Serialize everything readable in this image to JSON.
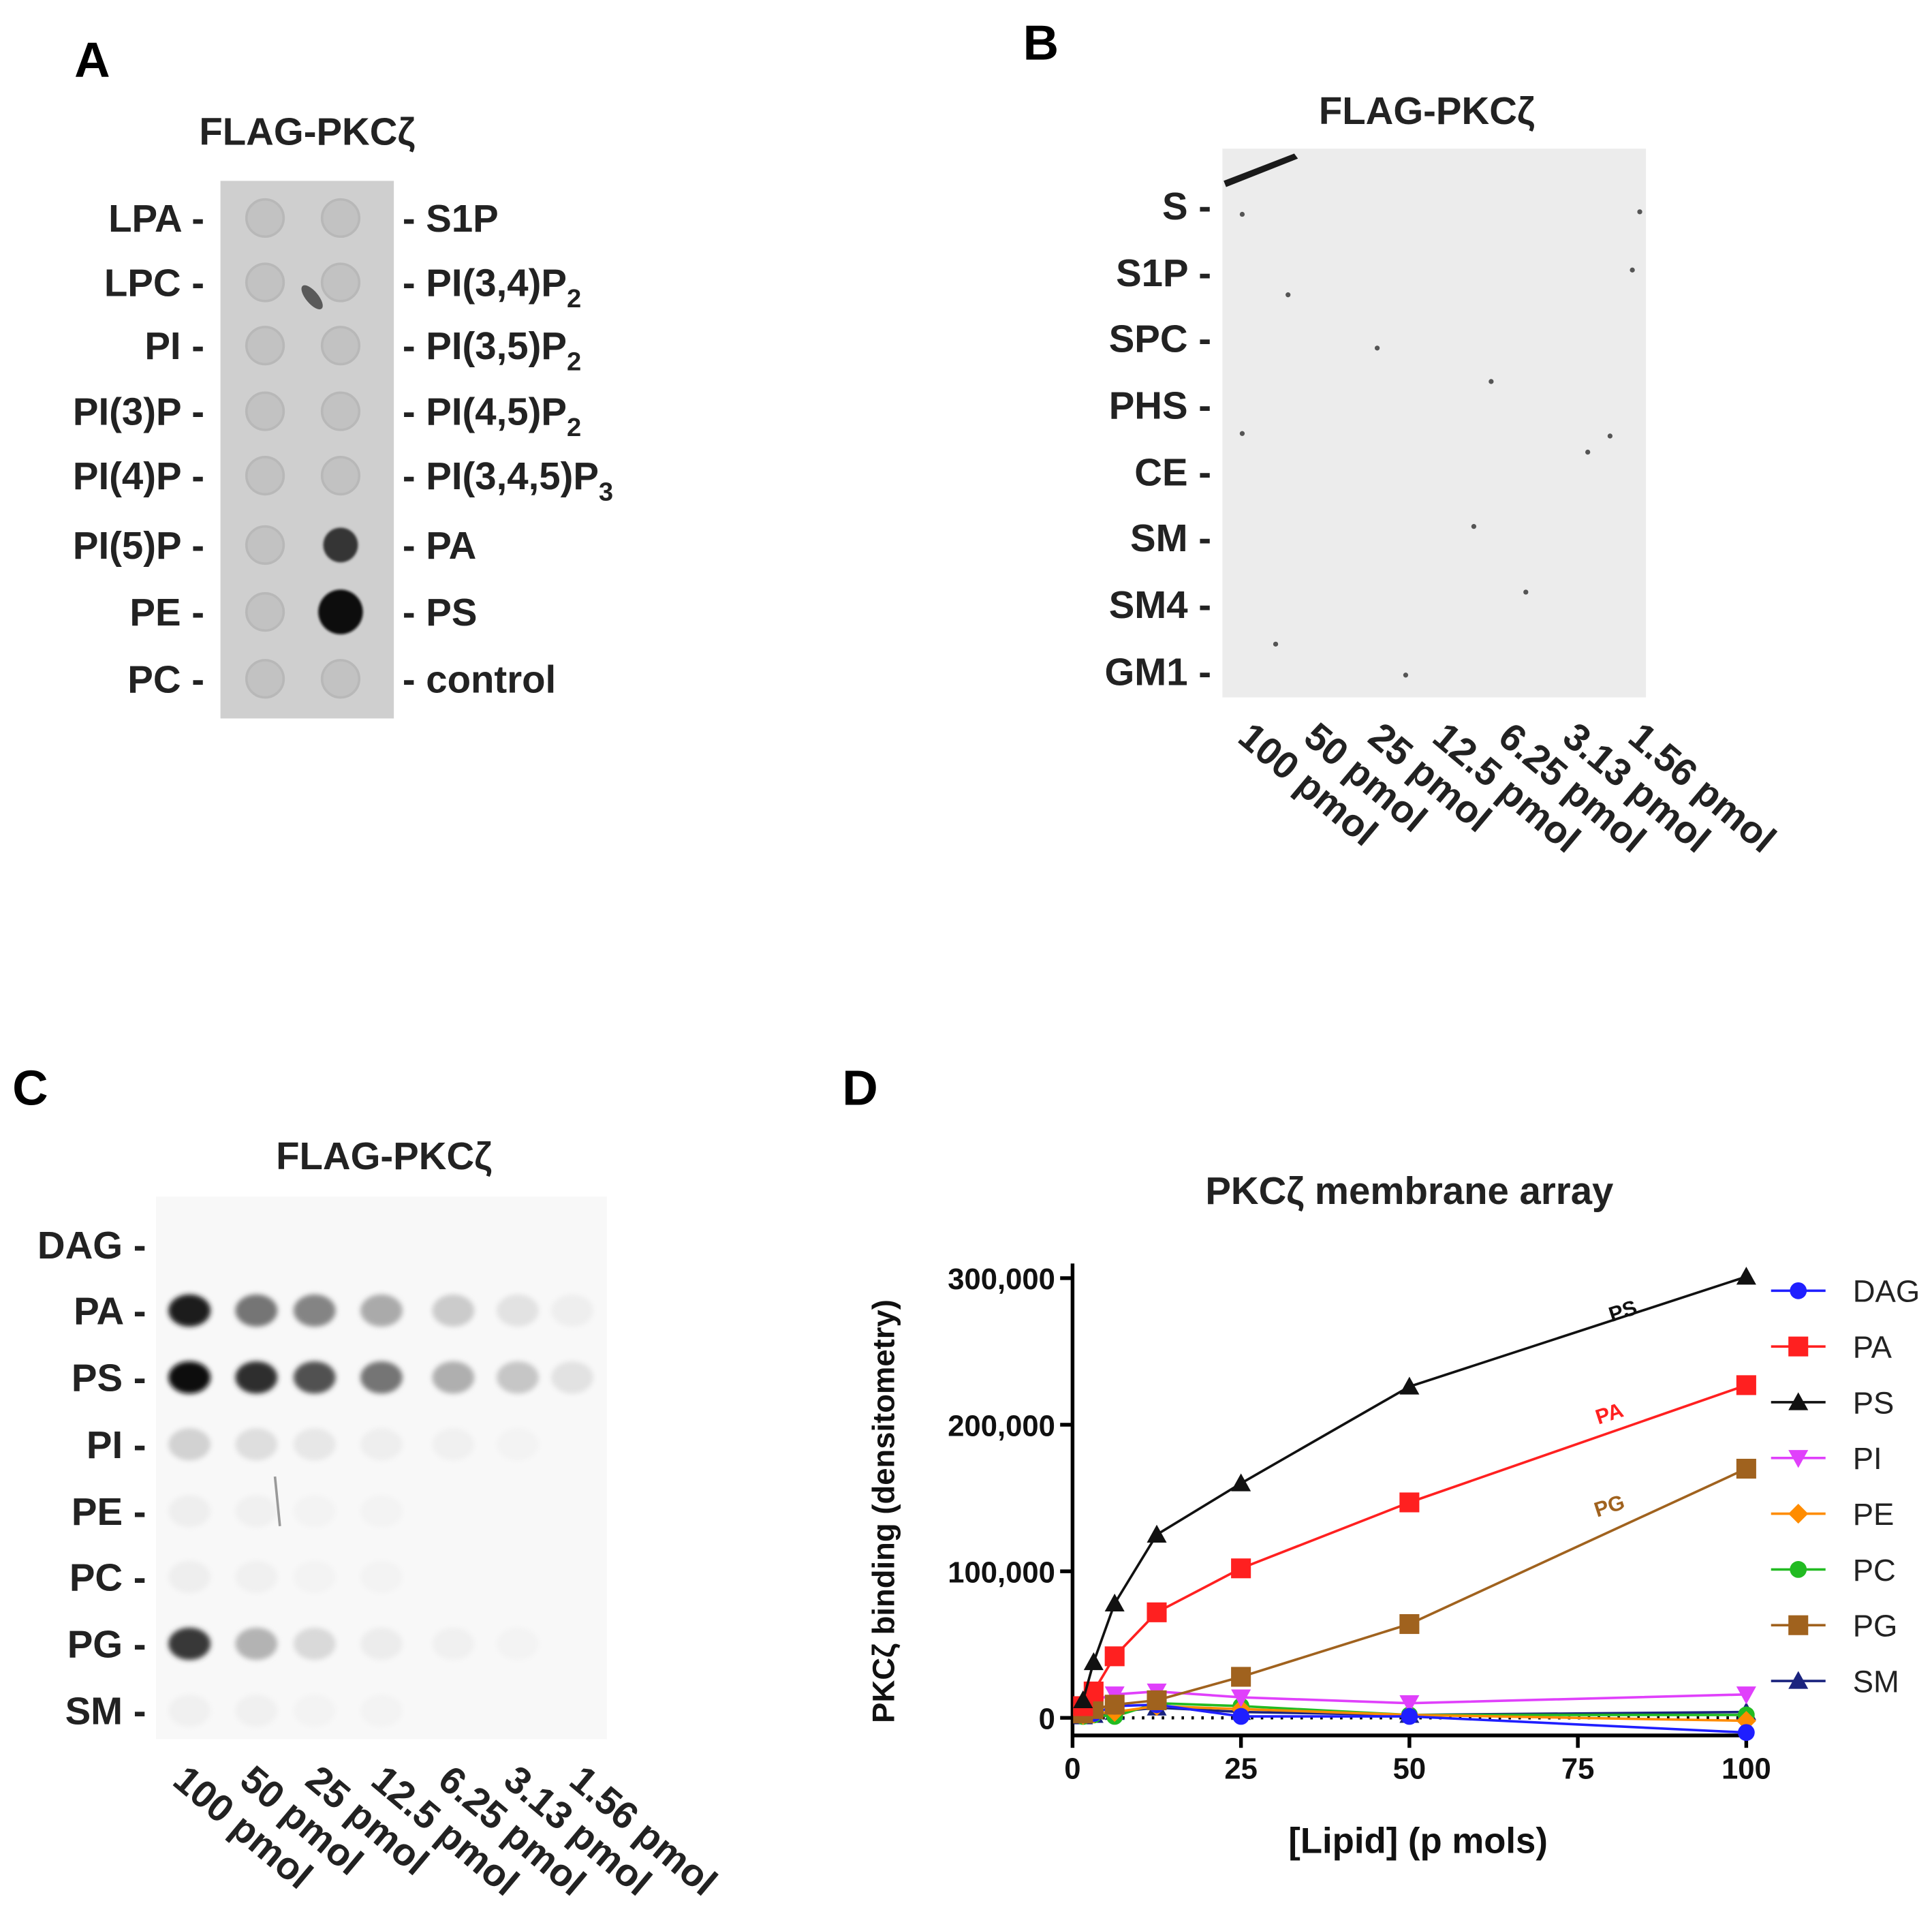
{
  "figure": {
    "panels": {
      "A": {
        "letter": "A",
        "title": "FLAG-PKCζ",
        "left_labels": [
          "LPA -",
          "LPC -",
          "PI -",
          "PI(3)P -",
          "PI(4)P -",
          "PI(5)P -",
          "PE -",
          "PC -"
        ],
        "right_labels": [
          "- S1P",
          "- PI(3,4)P",
          "- PI(3,5)P",
          "- PI(4,5)P",
          "- PI(3,4,5)P",
          "- PA",
          "- PS",
          "- control"
        ],
        "right_subscripts": [
          "",
          "2",
          "2",
          "2",
          "3",
          "",
          "",
          ""
        ]
      },
      "B": {
        "letter": "B",
        "title": "FLAG-PKCζ",
        "row_labels": [
          "S -",
          "S1P -",
          "SPC -",
          "PHS -",
          "CE -",
          "SM -",
          "SM4 -",
          "GM1 -"
        ],
        "col_labels": [
          "100 pmol",
          "50 pmol",
          "25 pmol",
          "12.5 pmol",
          "6.25 pmol",
          "3.13 pmol",
          "1.56 pmol"
        ]
      },
      "C": {
        "letter": "C",
        "title": "FLAG-PKCζ",
        "row_labels": [
          "DAG -",
          "PA -",
          "PS -",
          "PI -",
          "PE -",
          "PC -",
          "PG -",
          "SM -"
        ],
        "col_labels": [
          "100 pmol",
          "50 pmol",
          "25 pmol",
          "12.5 pmol",
          "6.25 pmol",
          "3.13 pmol",
          "1.56 pmol"
        ]
      },
      "D": {
        "letter": "D"
      }
    }
  },
  "chart_data": {
    "type": "line",
    "title": "PKCζ membrane array",
    "xlabel": "[Lipid] (p mols)",
    "ylabel": "PKCζ binding (densitometry)",
    "xlim": [
      0,
      100
    ],
    "ylim": [
      -12000,
      310000
    ],
    "xticks": [
      0,
      25,
      50,
      75,
      100
    ],
    "xtick_labels": [
      "0",
      "25",
      "50",
      "75",
      "100"
    ],
    "yticks": [
      0,
      100000,
      200000,
      300000
    ],
    "ytick_labels": [
      "0",
      "100,000",
      "200,000",
      "300,000"
    ],
    "x": [
      1.56,
      3.13,
      6.25,
      12.5,
      25,
      50,
      100
    ],
    "series": [
      {
        "name": "DAG",
        "color": "#1f1fff",
        "marker": "circle",
        "values": [
          4000,
          3000,
          8000,
          9000,
          1000,
          1000,
          -10000
        ]
      },
      {
        "name": "PA",
        "color": "#ff2020",
        "marker": "square",
        "values": [
          8000,
          18000,
          42000,
          72000,
          102000,
          147000,
          227000
        ]
      },
      {
        "name": "PS",
        "color": "#111111",
        "marker": "triangle-up",
        "values": [
          12000,
          38000,
          78000,
          125000,
          160000,
          226000,
          301000
        ]
      },
      {
        "name": "PI",
        "color": "#e040fb",
        "marker": "triangle-down",
        "values": [
          6000,
          12000,
          16000,
          18000,
          14000,
          10000,
          16000
        ]
      },
      {
        "name": "PE",
        "color": "#ff8c00",
        "marker": "diamond",
        "values": [
          2000,
          3000,
          4000,
          8000,
          6000,
          2000,
          -2000
        ]
      },
      {
        "name": "PC",
        "color": "#22bb22",
        "marker": "circle",
        "values": [
          1000,
          2000,
          1000,
          10000,
          8000,
          2000,
          2000
        ]
      },
      {
        "name": "PG",
        "color": "#a0621e",
        "marker": "square",
        "values": [
          3000,
          6000,
          9000,
          12000,
          28000,
          64000,
          170000
        ]
      },
      {
        "name": "SM",
        "color": "#1a237e",
        "marker": "triangle-up",
        "values": [
          1000,
          2000,
          4000,
          7000,
          4000,
          2000,
          4000
        ]
      }
    ],
    "annotations": [
      {
        "text": "PS",
        "color": "#111111",
        "at_x": 82,
        "at_y": 273000
      },
      {
        "text": "PA",
        "color": "#ff2020",
        "at_x": 80,
        "at_y": 203000
      },
      {
        "text": "PG",
        "color": "#a0621e",
        "at_x": 80,
        "at_y": 140000
      }
    ],
    "legend": "right"
  }
}
